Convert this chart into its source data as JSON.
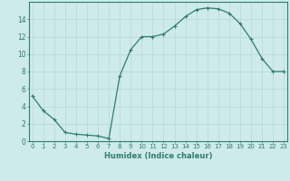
{
  "x": [
    0,
    1,
    2,
    3,
    4,
    5,
    6,
    7,
    8,
    9,
    10,
    11,
    12,
    13,
    14,
    15,
    16,
    17,
    18,
    19,
    20,
    21,
    22,
    23
  ],
  "y": [
    5.2,
    3.5,
    2.5,
    1.0,
    0.8,
    0.7,
    0.6,
    0.3,
    7.5,
    10.5,
    12.0,
    12.0,
    12.3,
    13.2,
    14.3,
    15.1,
    15.3,
    15.2,
    14.7,
    13.5,
    11.7,
    9.5,
    8.0,
    8.0
  ],
  "xlim": [
    -0.3,
    23.3
  ],
  "ylim": [
    0,
    16
  ],
  "yticks": [
    0,
    2,
    4,
    6,
    8,
    10,
    12,
    14
  ],
  "xticks": [
    0,
    1,
    2,
    3,
    4,
    5,
    6,
    7,
    8,
    9,
    10,
    11,
    12,
    13,
    14,
    15,
    16,
    17,
    18,
    19,
    20,
    21,
    22,
    23
  ],
  "xlabel": "Humidex (Indice chaleur)",
  "line_color": "#2e7d6e",
  "marker": "+",
  "marker_size": 3,
  "linewidth": 0.9,
  "bg_color": "#ceeaea",
  "grid_color": "#b8d8d8",
  "tick_fontsize": 5.0,
  "xlabel_fontsize": 6.0
}
